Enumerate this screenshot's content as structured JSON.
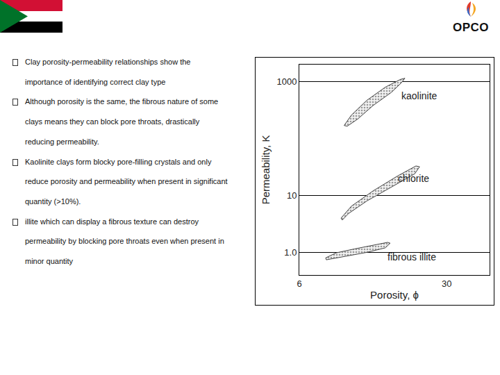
{
  "slide": {
    "logo": "OPCO",
    "bullets": [
      [
        "Clay porosity-permeability relationships show the",
        "importance of identifying correct clay type"
      ],
      [
        "Although porosity is the same, the fibrous nature of some",
        "clays means they can block pore throats, drastically",
        "reducing permeability."
      ],
      [
        "Kaolinite clays form blocky pore-filling crystals and only",
        "reduce porosity and permeability when present in significant",
        "quantity (>10%)."
      ],
      [
        "illite which  can display a fibrous texture can destroy",
        "permeability by blocking pore throats even when present in",
        "minor quantity"
      ]
    ]
  },
  "chart_data": {
    "type": "scatter",
    "x_label": "Porosity, ϕ",
    "y_label": "Permeability, K",
    "xlim": [
      6,
      37
    ],
    "xticks": [
      6,
      30
    ],
    "ylim": [
      0.4,
      2000
    ],
    "yticks": [
      {
        "value": 1,
        "label": "1.0"
      },
      10,
      1000
    ],
    "log": "y",
    "grid": true,
    "series": [
      {
        "name": "kaolinite",
        "color": "#999999",
        "line_style": "solid",
        "x": [
          13.3,
          14.5,
          17,
          20,
          22.5,
          23.2,
          22.6,
          21,
          18,
          15.5,
          13.8,
          13.3
        ],
        "y": [
          170,
          260,
          470,
          800,
          1100,
          1150,
          950,
          650,
          380,
          220,
          165,
          170
        ]
      },
      {
        "name": "chlorite",
        "color": "#999999",
        "line_style": "solid",
        "x": [
          12.8,
          14.5,
          18,
          22,
          25,
          25.6,
          24.8,
          21,
          17,
          14,
          13,
          12.8
        ],
        "y": [
          4,
          6.5,
          12,
          22,
          33,
          32,
          24,
          14,
          8,
          4.8,
          3.7,
          4
        ]
      },
      {
        "name": "fibrous illite",
        "color": "#999999",
        "line_style": "solid",
        "x": [
          10.3,
          12,
          15,
          18.5,
          20.4,
          20.8,
          20,
          17,
          14,
          11.5,
          10.4,
          10.3
        ],
        "y": [
          0.8,
          0.98,
          1.15,
          1.35,
          1.5,
          1.45,
          1.2,
          1.0,
          0.88,
          0.78,
          0.74,
          0.8
        ]
      }
    ]
  }
}
